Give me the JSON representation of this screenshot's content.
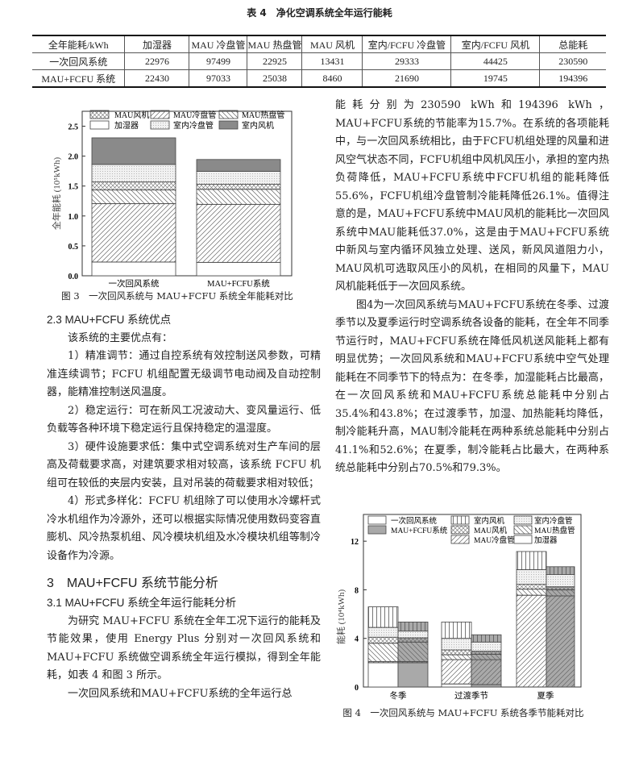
{
  "table": {
    "title": "表 4　净化空调系统全年运行能耗",
    "headers": [
      "全年能耗/kWh",
      "加湿器",
      "MAU 冷盘管",
      "MAU 热盘管",
      "MAU 风机",
      "室内/FCFU 冷盘管",
      "室内/FCFU 风机",
      "总能耗"
    ],
    "rows": [
      [
        "一次回风系统",
        "22976",
        "97499",
        "22925",
        "13431",
        "29333",
        "44425",
        "230590"
      ],
      [
        "MAU+FCFU 系统",
        "22430",
        "97033",
        "25038",
        "8460",
        "21690",
        "19745",
        "194396"
      ]
    ]
  },
  "left_column": {
    "s23_heading": "2.3 MAU+FCFU 系统优点",
    "s23_intro": "该系统的主要优点有：",
    "s23_p1": "1）精准调节：通过自控系统有效控制送风参数，可精准连续调节；FCFU 机组配置无级调节电动阀及自动控制器，能精准控制送风温度。",
    "s23_p2": "2）稳定运行：可在新风工况波动大、变风量运行、低负载等各种环境下稳定运行且保持稳定的温湿度。",
    "s23_p3": "3）硬件设施要求低：集中式空调系统对生产车间的层高及荷载要求高，对建筑要求相对较高，该系统 FCFU 机组可在较低的夹层内安装，且对吊装的荷载要求相对较低；",
    "s23_p4": "4）形式多样化：FCFU 机组除了可以使用水冷螺杆式冷水机组作为冷源外，还可以根据实际情况使用数码变容直膨机、风冷热泵机组、风冷模块机组及水冷模块机组等制冷设备作为冷源。",
    "s3_heading": "3　MAU+FCFU 系统节能分析",
    "s31_heading": "3.1 MAU+FCFU 系统全年运行能耗分析",
    "s31_p1": "为研究 MAU+FCFU 系统在全年工况下运行的能耗及节能效果，使用 Energy Plus 分别对一次回风系统和 MAU+FCFU 系统做空调系统全年运行模拟，得到全年能耗，如表 4 和图 3 所示。",
    "s31_p2": "一次回风系统和MAU+FCFU系统的全年运行总"
  },
  "right_column": {
    "p1": "能耗分别为230590 kWh和194396 kWh，MAU+FCFU系统的节能率为15.7%。在系统的各项能耗中，与一次回风系统相比，由于FCFU机组处理的风量和进风空气状态不同，FCFU机组中风机风压小，承担的室内热负荷降低，MAU+FCFU系统中FCFU机组的能耗降低55.6%，FCFU机组冷盘管制冷能耗降低26.1%。值得注意的是，MAU+FCFU系统中MAU风机的能耗比一次回风系统中MAU能耗低37.0%，这是由于MAU+FCFU系统中新风与室内循环风独立处理、送风，新风风道阻力小，MAU风机可选取风压小的风机，在相同的风量下，MAU风机能耗低于一次回风系统。",
    "p2": "图4为一次回风系统与MAU+FCFU系统在冬季、过渡季节以及夏季运行时空调系统各设备的能耗，在全年不同季节运行时，MAU+FCFU系统在降低风机送风能耗上都有明显优势；一次回风系统和MAU+FCFU系统中空气处理能耗在不同季节下的特点为：在冬季，加湿能耗占比最高，在一次回风系统和MAU+FCFU系统总能耗中分别占35.4%和43.8%；在过渡季节，加湿、加热能耗均降低，制冷能耗升高，MAU制冷能耗在两种系统总能耗中分别占41.1%和52.6%；在夏季，制冷能耗占比最大，在两种系统总能耗中分别占70.5%和79.3%。"
  },
  "fig3_caption": "图 3　一次回风系统与 MAU+FCFU 系统全年能耗对比",
  "fig4_caption": "图 4　一次回风系统与 MAU+FCFU 系统各季节能耗对比",
  "chart_data": [
    {
      "type": "bar",
      "stacked": true,
      "ylabel": "全年能耗 (10⁵kWh)",
      "ylim": [
        0,
        2.75
      ],
      "yticks": [
        "0.0",
        "0.5",
        "1.0",
        "1.5",
        "2.0",
        "2.5"
      ],
      "categories": [
        "一次回风系统",
        "MAU+FCFU系统"
      ],
      "legend": "top",
      "series": [
        {
          "name": "加湿器",
          "pattern": "white",
          "values": [
            0.22976,
            0.2243
          ]
        },
        {
          "name": "MAU冷盘管",
          "pattern": "slash",
          "values": [
            0.97499,
            0.97033
          ]
        },
        {
          "name": "MAU热盘管",
          "pattern": "backslash",
          "values": [
            0.22925,
            0.25038
          ]
        },
        {
          "name": "MAU风机",
          "pattern": "cross",
          "values": [
            0.13431,
            0.0846
          ]
        },
        {
          "name": "室内冷盘管",
          "pattern": "dots",
          "values": [
            0.29333,
            0.2169
          ]
        },
        {
          "name": "室内风机",
          "pattern": "dark",
          "values": [
            0.44425,
            0.19745
          ]
        }
      ],
      "legend_order": [
        "MAU风机",
        "MAU冷盘管",
        "MAU热盘管",
        "加湿器",
        "室内冷盘管",
        "室内风机"
      ]
    },
    {
      "type": "bar",
      "stacked": true,
      "ylabel": "能耗 (10⁴kWh)",
      "ylim": [
        0,
        14.2
      ],
      "yticks": [
        "0",
        "4",
        "8",
        "12"
      ],
      "categories": [
        "冬季",
        "过渡季节",
        "夏季"
      ],
      "systems": [
        {
          "name": "一次回风系统",
          "fill": "#ffffff"
        },
        {
          "name": "MAU+FCFU系统",
          "fill": "#a9a9a9"
        }
      ],
      "legend": "top-left",
      "series": [
        {
          "name": "加湿器",
          "pattern": "white",
          "values": [
            [
              2.0,
              2.0
            ],
            [
              0.25,
              0.2
            ],
            [
              0,
              0
            ]
          ]
        },
        {
          "name": "MAU冷盘管",
          "pattern": "slash",
          "values": [
            [
              0.1,
              0.1
            ],
            [
              2.0,
              2.05
            ],
            [
              7.55,
              7.5
            ]
          ]
        },
        {
          "name": "MAU热盘管",
          "pattern": "backslash",
          "values": [
            [
              1.5,
              1.6
            ],
            [
              0.4,
              0.45
            ],
            [
              0.5,
              0.5
            ]
          ]
        },
        {
          "name": "MAU风机",
          "pattern": "cross",
          "values": [
            [
              0.5,
              0.35
            ],
            [
              0.4,
              0.25
            ],
            [
              0.4,
              0.25
            ]
          ]
        },
        {
          "name": "室内冷盘管",
          "pattern": "dots",
          "values": [
            [
              0.8,
              0.55
            ],
            [
              0.95,
              0.75
            ],
            [
              1.2,
              1.0
            ]
          ]
        },
        {
          "name": "室内风机",
          "pattern": "vertical",
          "values": [
            [
              1.7,
              0.75
            ],
            [
              1.35,
              0.6
            ],
            [
              1.5,
              0.65
            ]
          ]
        }
      ],
      "legend_order": [
        "一次回风系统",
        "室内风机",
        "室内冷盘管",
        "MAU+FCFU系统",
        "MAU风机",
        "MAU热盘管",
        "",
        "MAU冷盘管",
        "加湿器"
      ]
    }
  ]
}
